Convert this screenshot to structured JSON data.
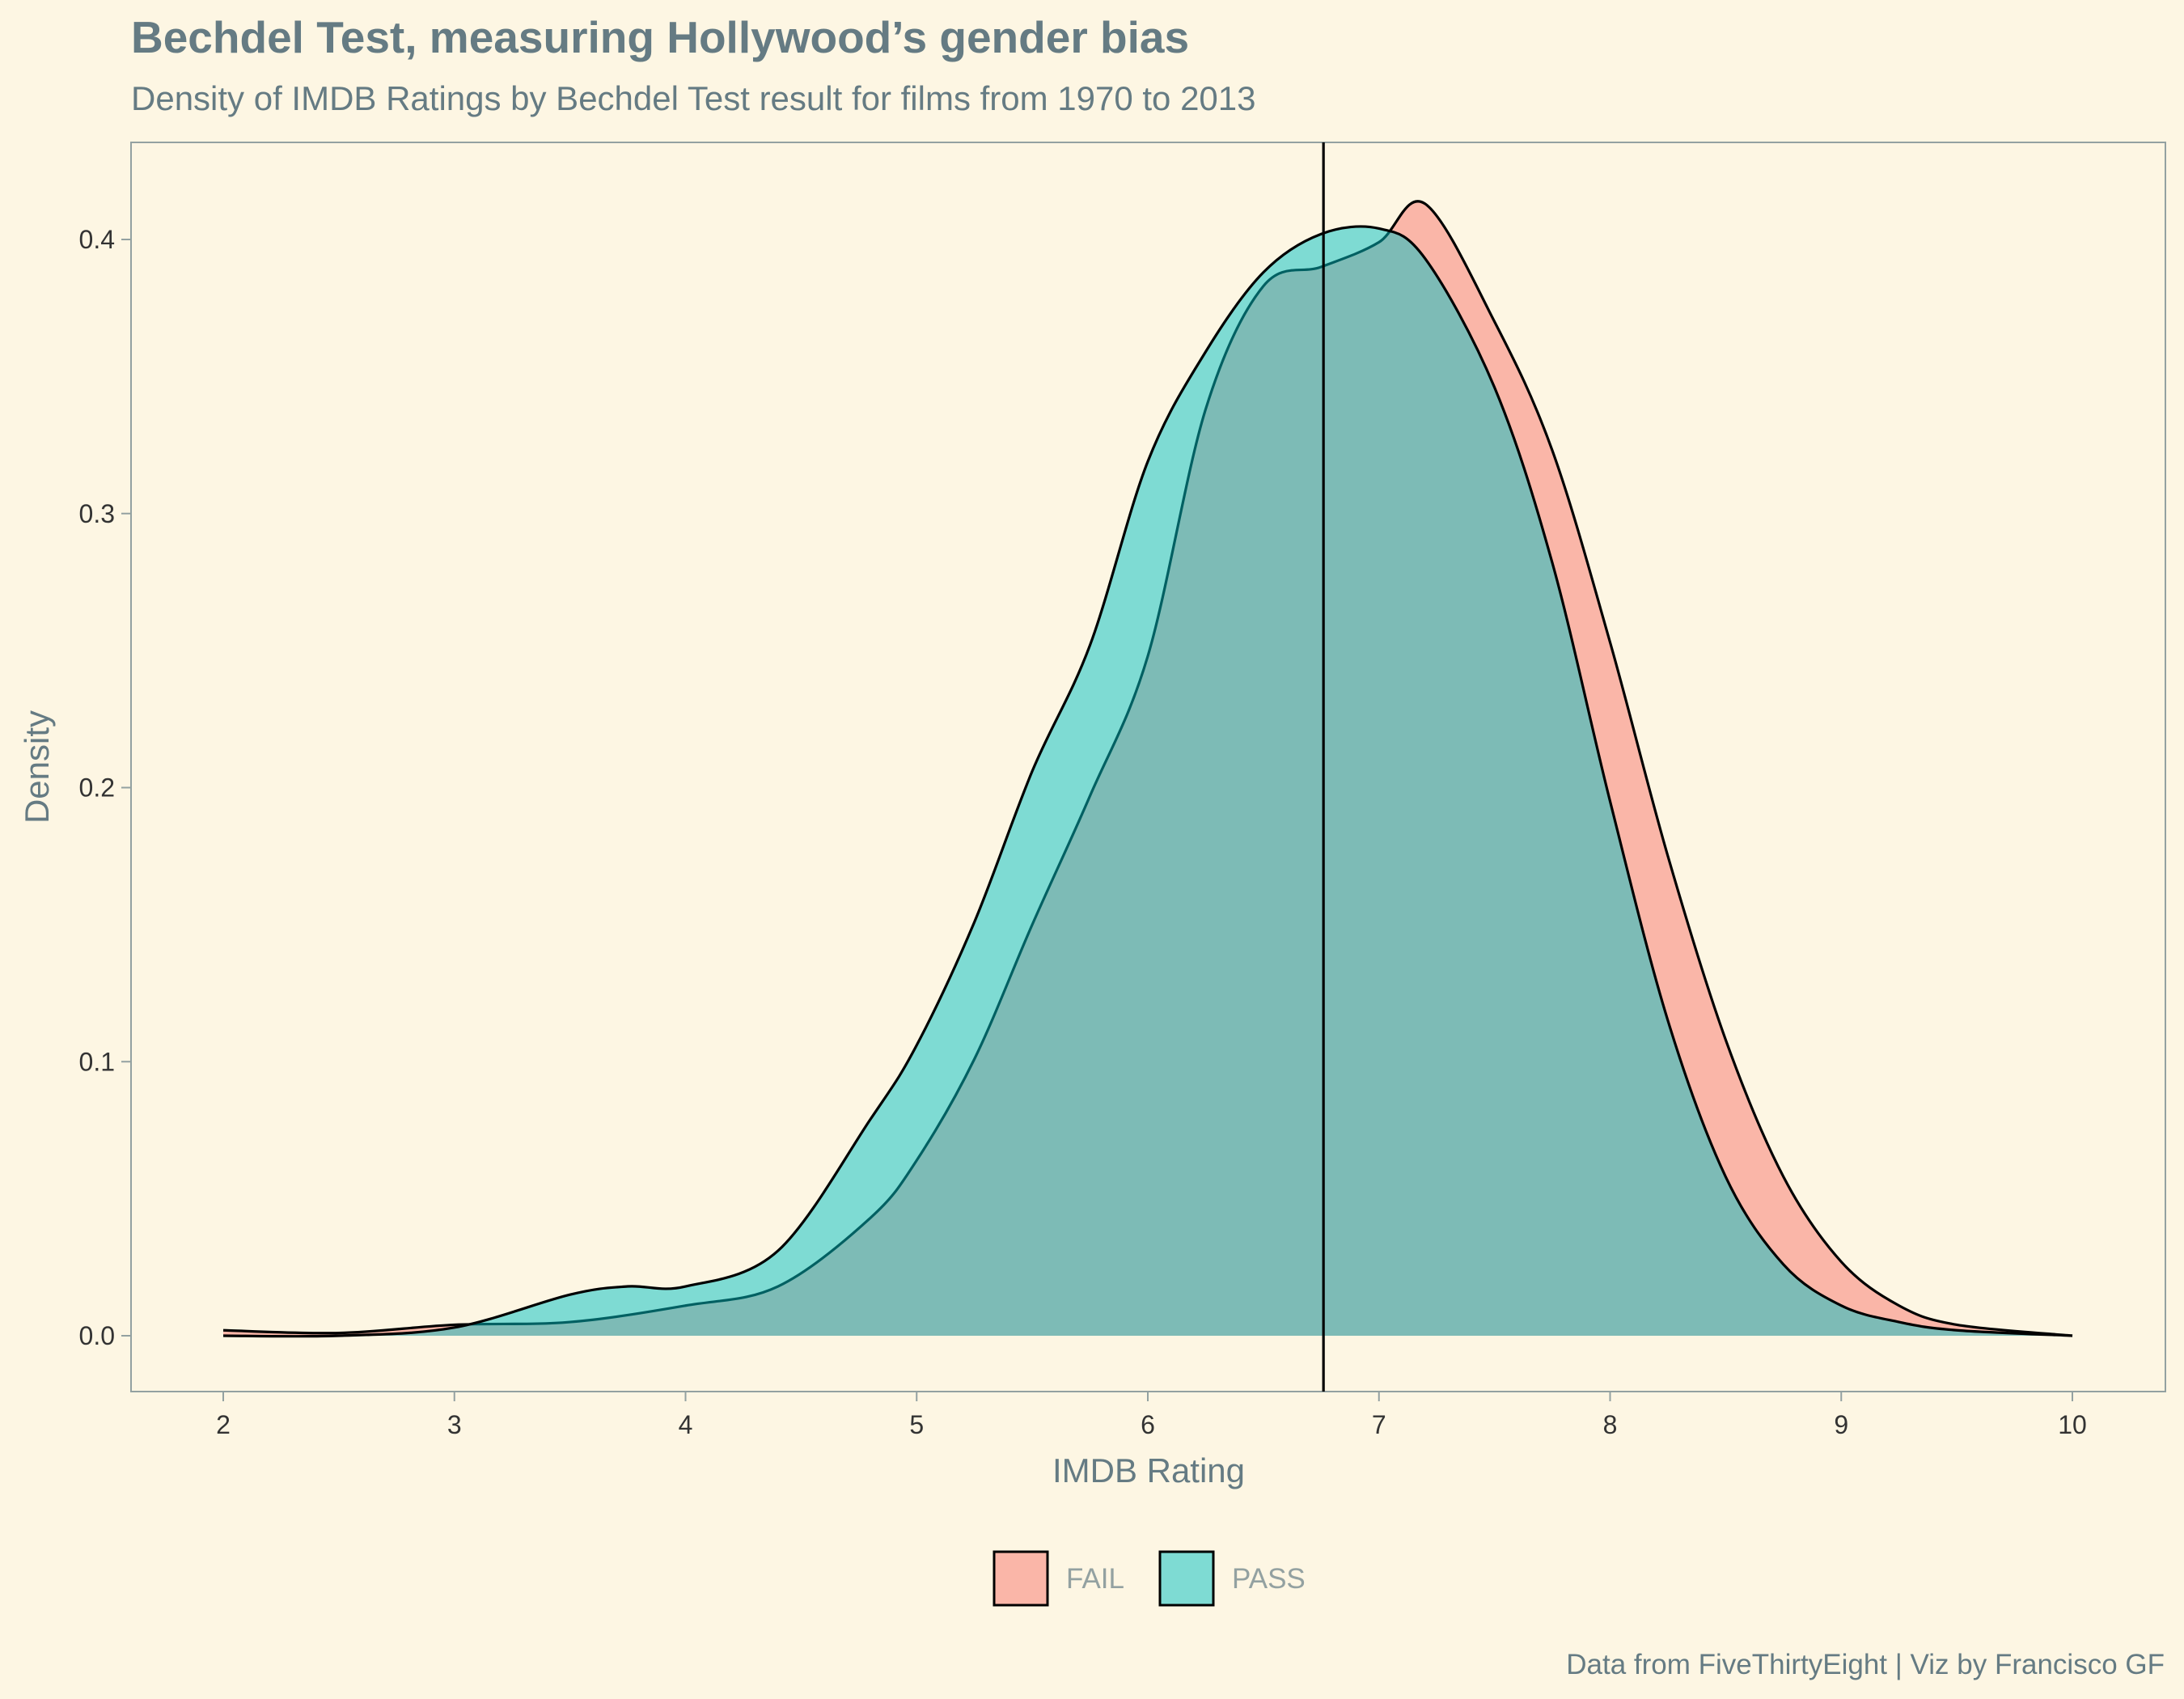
{
  "title": "Bechdel Test, measuring Hollywood’s gender bias",
  "subtitle": "Density of IMDB Ratings by Bechdel Test result for films from 1970 to 2013",
  "caption": "Data from FiveThirtyEight | Viz by Francisco GF",
  "colors": {
    "background": "#fdf6e3",
    "text": "#657b83",
    "fail": "#F8766D",
    "pass": "#00BFC4"
  },
  "chart_data": {
    "type": "area",
    "subtype": "density",
    "xlabel": "IMDB Rating",
    "ylabel": "Density",
    "xlim": [
      2,
      10
    ],
    "ylim": [
      0,
      0.42
    ],
    "xticks": [
      2,
      3,
      4,
      5,
      6,
      7,
      8,
      9,
      10
    ],
    "yticks": [
      0.0,
      0.1,
      0.2,
      0.3,
      0.4
    ],
    "xtick_labels": [
      "2",
      "3",
      "4",
      "5",
      "6",
      "7",
      "8",
      "9",
      "10"
    ],
    "ytick_labels": [
      "0.0",
      "0.1",
      "0.2",
      "0.3",
      "0.4"
    ],
    "grid": false,
    "legend": {
      "position": "bottom",
      "entries": [
        "FAIL",
        "PASS"
      ]
    },
    "vline": {
      "x": 6.76
    },
    "series": [
      {
        "name": "FAIL",
        "color": "#F8766D",
        "x": [
          2.0,
          2.5,
          3.0,
          3.5,
          4.0,
          4.4,
          4.8,
          5.0,
          5.25,
          5.5,
          5.75,
          6.0,
          6.25,
          6.5,
          6.75,
          7.0,
          7.2,
          7.5,
          7.75,
          8.0,
          8.25,
          8.5,
          8.75,
          9.0,
          9.25,
          9.5,
          10.0
        ],
        "y": [
          0.002,
          0.001,
          0.004,
          0.005,
          0.011,
          0.018,
          0.043,
          0.064,
          0.101,
          0.15,
          0.197,
          0.248,
          0.338,
          0.383,
          0.39,
          0.399,
          0.413,
          0.37,
          0.323,
          0.253,
          0.175,
          0.108,
          0.058,
          0.027,
          0.011,
          0.004,
          0.0
        ]
      },
      {
        "name": "PASS",
        "color": "#00BFC4",
        "x": [
          2.0,
          2.5,
          3.0,
          3.5,
          3.75,
          4.0,
          4.4,
          4.8,
          5.0,
          5.25,
          5.5,
          5.75,
          6.0,
          6.25,
          6.5,
          6.75,
          7.0,
          7.2,
          7.5,
          7.75,
          8.0,
          8.25,
          8.5,
          8.75,
          9.0,
          9.25,
          9.5,
          10.0
        ],
        "y": [
          0.0,
          0.0,
          0.003,
          0.015,
          0.018,
          0.018,
          0.031,
          0.079,
          0.106,
          0.151,
          0.206,
          0.252,
          0.319,
          0.359,
          0.388,
          0.402,
          0.404,
          0.393,
          0.346,
          0.282,
          0.195,
          0.115,
          0.058,
          0.026,
          0.011,
          0.005,
          0.002,
          0.0
        ]
      }
    ]
  }
}
